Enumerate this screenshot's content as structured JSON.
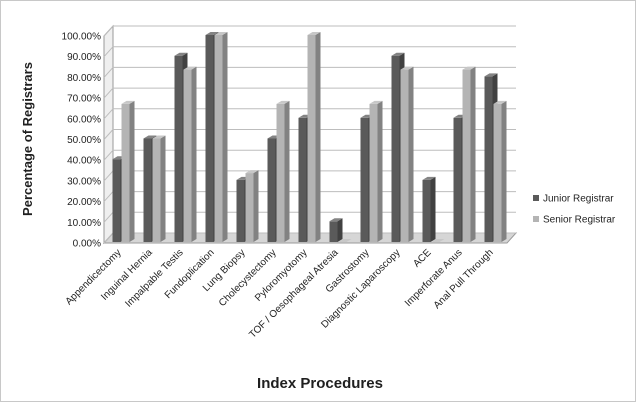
{
  "chart_data": {
    "type": "bar",
    "title": "",
    "xlabel": "Index Procedures",
    "ylabel": "Percentage of Registrars",
    "ylim": [
      0,
      100
    ],
    "yticks": [
      "0.00%",
      "10.00%",
      "20.00%",
      "30.00%",
      "40.00%",
      "50.00%",
      "60.00%",
      "70.00%",
      "80.00%",
      "90.00%",
      "100.00%"
    ],
    "categories": [
      "Appendicectomy",
      "Inguinal Hernia",
      "Impalpable Testis",
      "Fundoplication",
      "Lung Biopsy",
      "Cholecystectomy",
      "Pyloromyotomy",
      "TOF / Oesophageal Atresia",
      "Gastrostomy",
      "Diagnostic Laparoscopy",
      "ACE",
      "Imperforate Anus",
      "Anal Pull Through"
    ],
    "series": [
      {
        "name": "Junior Registrar",
        "color": "#5a5a5a",
        "values": [
          40,
          50,
          90,
          100,
          30,
          50,
          60,
          10,
          60,
          90,
          30,
          60,
          80
        ]
      },
      {
        "name": "Senior Registrar",
        "color": "#b4b4b4",
        "values": [
          66.7,
          50,
          83.3,
          100,
          33.3,
          66.7,
          100,
          0,
          66.7,
          83.3,
          0,
          83.3,
          66.7
        ]
      }
    ],
    "grid": true,
    "legend_position": "right",
    "style": "3d"
  }
}
